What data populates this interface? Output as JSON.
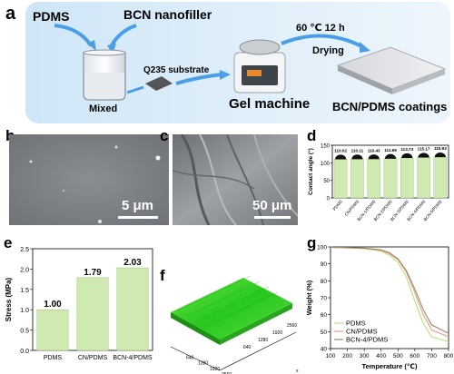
{
  "panel_labels": {
    "a": "a",
    "b": "b",
    "c": "c",
    "d": "d",
    "e": "e",
    "f": "f",
    "g": "g"
  },
  "panel_a": {
    "pdms": "PDMS",
    "bcn_nanofiller": "BCN nanofiller",
    "condition": "60 ℃  12 h",
    "drying": "Drying",
    "q235": "Q235 substrate",
    "mixed": "Mixed",
    "gel_machine": "Gel machine",
    "coatings": "BCN/PDMS coatings"
  },
  "panel_b": {
    "scale": "5 μm"
  },
  "panel_c": {
    "scale": "50 μm"
  },
  "panel_f": {
    "axis_x_ticks": [
      "640",
      "1280",
      "1920",
      "2560"
    ],
    "axis_y_ticks": [
      "2560",
      "1920",
      "1280",
      "640"
    ],
    "axis_end": "x"
  },
  "chart_data": [
    {
      "id": "d",
      "type": "bar",
      "categories": [
        "PDMS",
        "CN/PDMS",
        "BCN-1/PDMS",
        "BCN-2/PDMS",
        "BCN-3/PDMS",
        "BCN-4/PDMS",
        "BCN-5/PDMS"
      ],
      "values": [
        110.02,
        110.11,
        110.43,
        111.69,
        113.73,
        115.17,
        115.93
      ],
      "value_labels": [
        "110.02",
        "110.11",
        "110.43",
        "111.69",
        "113.73",
        "115.17",
        "115.93"
      ],
      "ylabel": "Contact angle (°)",
      "ylim": [
        0,
        150
      ],
      "yticks": [
        "0",
        "50",
        "100",
        "150"
      ],
      "color": "#cfe9b0"
    },
    {
      "id": "e",
      "type": "bar",
      "categories": [
        "PDMS",
        "CN/PDMS",
        "BCN-4/PDMS"
      ],
      "values": [
        1.0,
        1.79,
        2.03
      ],
      "value_labels": [
        "1.00",
        "1.79",
        "2.03"
      ],
      "ylabel": "Stress (MPa)",
      "ylim": [
        0,
        2.5
      ],
      "yticks": [
        "0.0",
        "0.5",
        "1.0",
        "1.5",
        "2.0",
        "2.5"
      ],
      "color": "#cfe9b0"
    },
    {
      "id": "g",
      "type": "line",
      "xlabel": "Temperature (℃)",
      "ylabel": "Weight (%)",
      "xlim": [
        100,
        800
      ],
      "ylim": [
        40,
        100
      ],
      "xticks": [
        "100",
        "200",
        "300",
        "400",
        "500",
        "600",
        "700",
        "800"
      ],
      "yticks": [
        "40",
        "50",
        "60",
        "70",
        "80",
        "90",
        "100"
      ],
      "series": [
        {
          "name": "PDMS",
          "color": "#b9e07a",
          "x": [
            100,
            300,
            400,
            450,
            500,
            550,
            600,
            650,
            700,
            800
          ],
          "y": [
            99.8,
            99.0,
            97.5,
            95,
            91,
            82,
            68,
            55,
            47,
            44
          ]
        },
        {
          "name": "CN/PDMS",
          "color": "#f09a8a",
          "x": [
            100,
            300,
            400,
            450,
            500,
            550,
            600,
            650,
            700,
            800
          ],
          "y": [
            99.8,
            99.2,
            98,
            96,
            92.5,
            85,
            73,
            60,
            51,
            47
          ]
        },
        {
          "name": "BCN-4/PDMS",
          "color": "#9a8a6a",
          "x": [
            100,
            300,
            400,
            450,
            500,
            550,
            600,
            650,
            700,
            800
          ],
          "y": [
            99.8,
            99.3,
            98.3,
            96.5,
            93,
            86,
            75,
            63,
            54,
            49
          ]
        }
      ]
    }
  ]
}
